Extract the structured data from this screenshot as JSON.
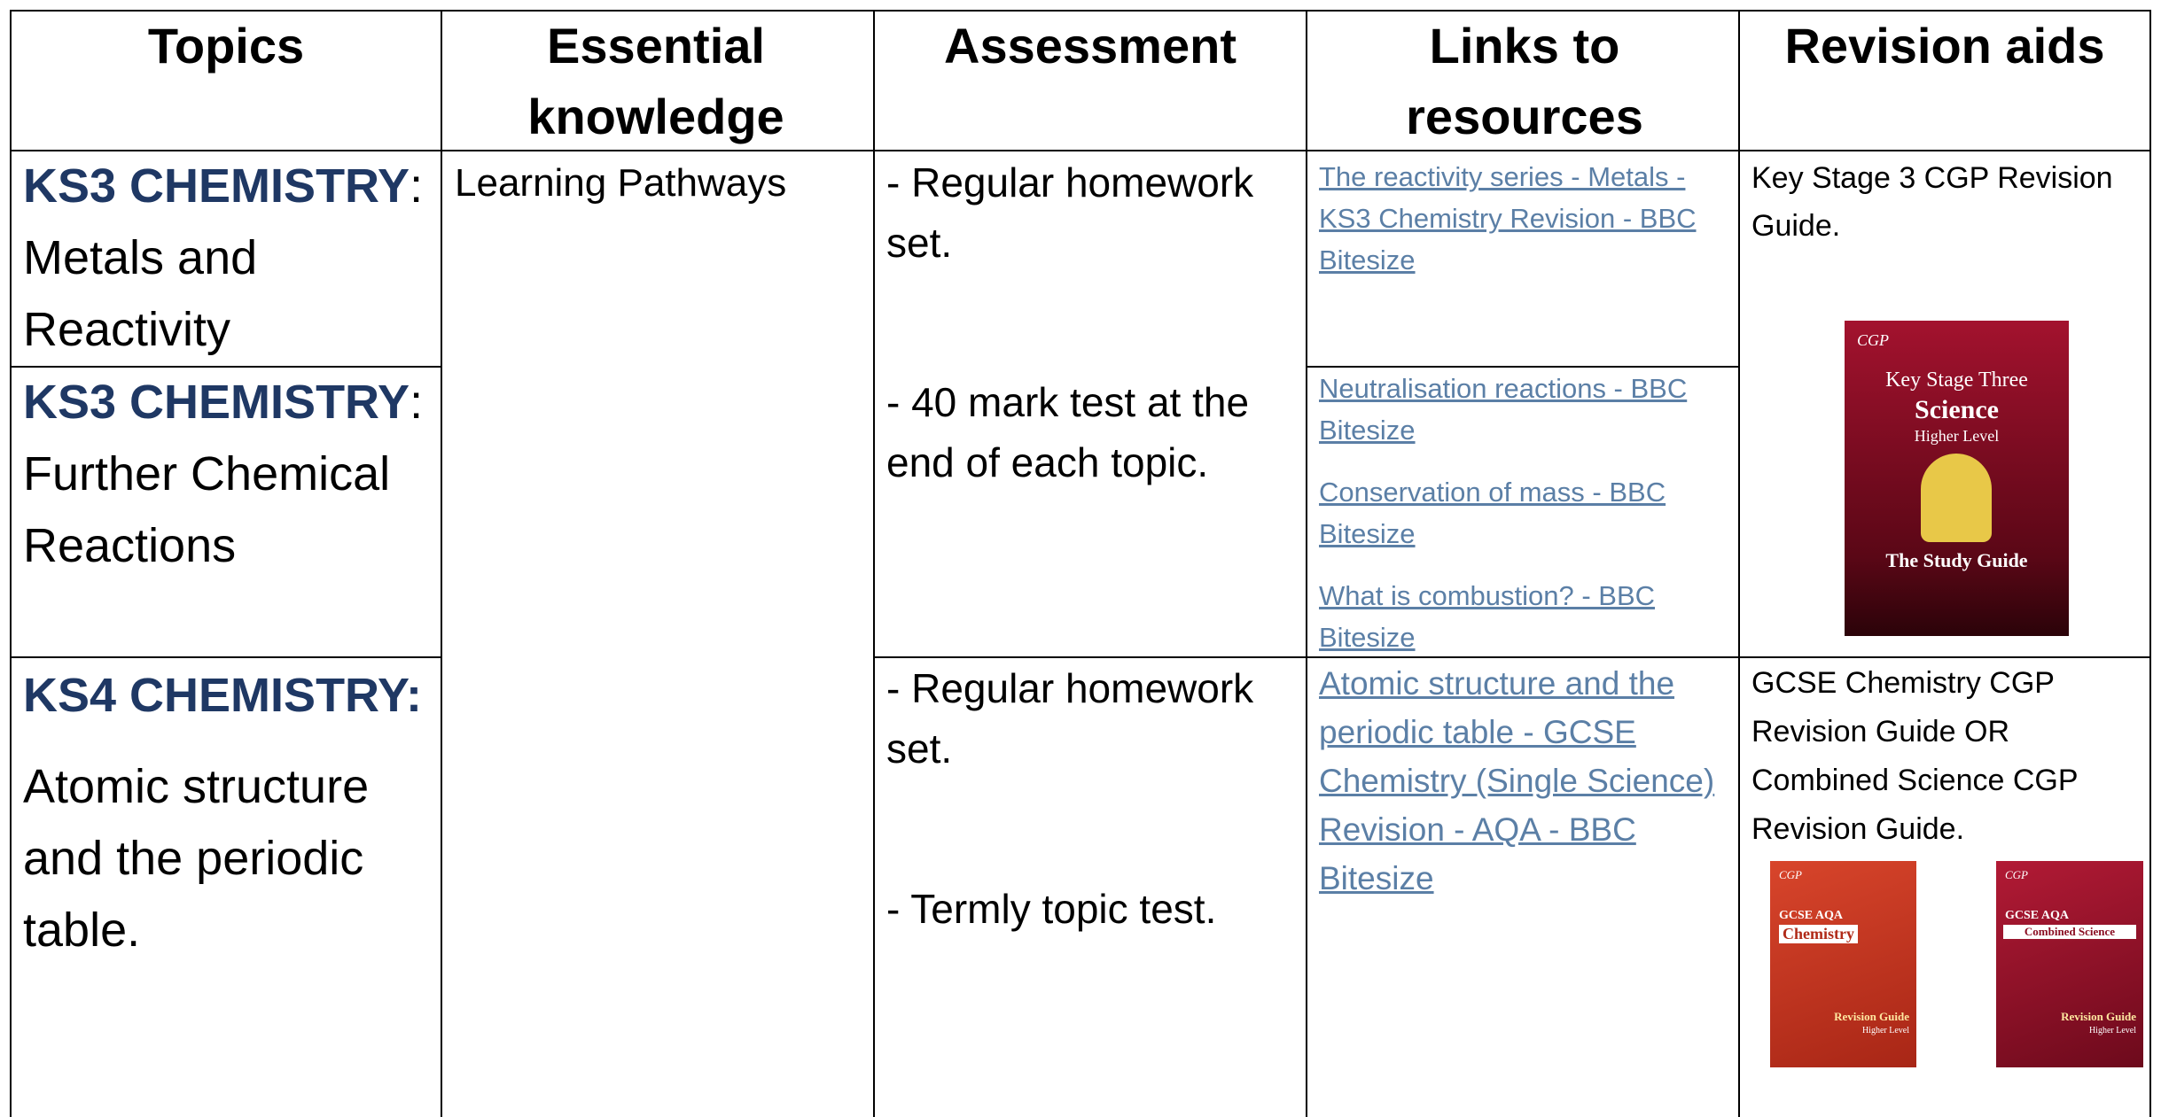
{
  "header": {
    "topics": "Topics",
    "essential_knowledge": "Essential knowledge",
    "assessment": "Assessment",
    "links": "Links to resources",
    "revision_aids": "Revision aids"
  },
  "rows": [
    {
      "topic_code": "KS3 CHEMISTRY",
      "topic_sep": ":",
      "topic_name": "Metals and Reactivity",
      "links": [
        "The reactivity series - Metals - KS3 Chemistry Revision - BBC Bitesize"
      ]
    },
    {
      "topic_code": "KS3 CHEMISTRY",
      "topic_sep": ":",
      "topic_name": "Further Chemical Reactions",
      "links": [
        "Neutralisation reactions - BBC Bitesize",
        "Conservation of mass - BBC Bitesize",
        "What is combustion? - BBC Bitesize"
      ]
    },
    {
      "topic_code": "KS4 CHEMISTRY:",
      "topic_name": "Atomic structure and the periodic table.",
      "links": [
        "Atomic structure and the periodic table - GCSE Chemistry (Single Science) Revision - AQA - BBC Bitesize"
      ]
    }
  ],
  "essential_knowledge": "Learning Pathways",
  "assessment": {
    "ks3": [
      "- Regular homework set.",
      "- 40 mark test at the end of each topic."
    ],
    "ks4": [
      "- Regular homework set.",
      "- Termly topic test."
    ]
  },
  "revision_aids": {
    "ks3": "Key Stage 3 CGP Revision Guide.",
    "ks4": "GCSE Chemistry CGP Revision Guide OR Combined Science CGP Revision Guide."
  },
  "covers": [
    {
      "brand": "CGP",
      "line1": "Key Stage Three",
      "line2": "Science",
      "line3": "Higher Level",
      "line4": "The Study Guide"
    },
    {
      "brand": "CGP",
      "line1": "GCSE AQA",
      "line2": "Chemistry",
      "line3": "Revision Guide",
      "line4": "Higher Level"
    },
    {
      "brand": "CGP",
      "line1": "GCSE AQA",
      "line2": "Combined Science",
      "line3": "Revision Guide",
      "line4": "Higher Level"
    }
  ]
}
